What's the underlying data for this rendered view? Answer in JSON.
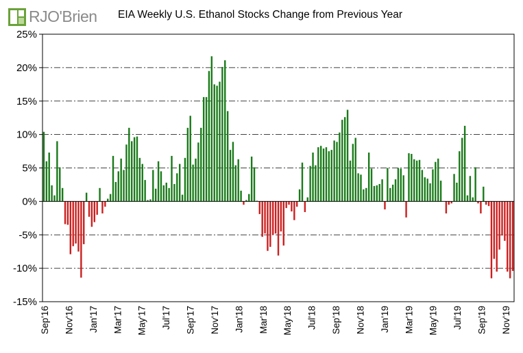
{
  "brand": {
    "logo_text": "RJO'Brien",
    "logo_color": "#6aa23a"
  },
  "chart_data": {
    "type": "bar",
    "title": "EIA Weekly U.S. Ethanol Stocks Change from Previous Year",
    "xlabel": "",
    "ylabel": "",
    "ylim": [
      -15,
      25
    ],
    "yticks": [
      -15,
      -10,
      -5,
      0,
      5,
      10,
      15,
      20,
      25
    ],
    "ytick_labels": [
      "-15%",
      "-10%",
      "-5%",
      "0%",
      "5%",
      "10%",
      "15%",
      "20%",
      "25%"
    ],
    "xtick_labels": [
      "Sep'16",
      "Nov'16",
      "Jan'17",
      "Mar'17",
      "May'17",
      "Jul'17",
      "Sep'17",
      "Nov'17",
      "Jan'18",
      "Mar'18",
      "May'18",
      "Jul'18",
      "Sep'18",
      "Nov'18",
      "Jan'19",
      "Mar'19",
      "May'19",
      "Jul'19",
      "Sep'19",
      "Nov'19"
    ],
    "grid": "horizontal dash-dot",
    "positive_color": "#1a7a1a",
    "negative_color": "#cc1f1f",
    "unit": "percent",
    "values": [
      10.4,
      6.0,
      7.3,
      2.4,
      0.9,
      9.0,
      5.1,
      2.0,
      -3.4,
      -3.5,
      -7.9,
      -6.7,
      -6.3,
      -7.5,
      -11.4,
      -6.4,
      1.3,
      -2.3,
      -3.8,
      -3.1,
      -2.0,
      2.0,
      -1.8,
      -0.8,
      0.4,
      1.1,
      6.8,
      2.9,
      4.5,
      6.4,
      4.7,
      8.5,
      11.0,
      9.0,
      9.6,
      9.7,
      6.5,
      5.6,
      3.2,
      0.2,
      0.3,
      4.7,
      1.9,
      6.0,
      4.5,
      2.4,
      2.8,
      2.0,
      6.8,
      2.6,
      4.2,
      5.6,
      1.0,
      6.5,
      11.0,
      12.8,
      5.5,
      6.4,
      8.8,
      11.0,
      15.6,
      15.6,
      19.5,
      21.7,
      17.5,
      17.3,
      17.9,
      20.1,
      21.1,
      13.5,
      7.7,
      8.9,
      5.4,
      6.3,
      1.6,
      -0.5,
      0.2,
      1.1,
      6.7,
      5.1,
      0.1,
      -1.9,
      -5.3,
      -4.8,
      -7.4,
      -6.8,
      -5.0,
      -4.8,
      -8.1,
      -4.5,
      -6.6,
      -1.0,
      -0.5,
      -1.5,
      -2.8,
      -0.8,
      1.8,
      5.8,
      -1.6,
      0.6,
      5.3,
      7.3,
      5.4,
      8.1,
      8.3,
      7.9,
      8.1,
      7.5,
      7.7,
      9.1,
      8.9,
      10.3,
      12.2,
      12.6,
      13.7,
      6.1,
      8.6,
      9.5,
      4.2,
      4.0,
      1.8,
      2.0,
      7.3,
      4.9,
      2.3,
      2.4,
      2.6,
      3.3,
      -1.2,
      5.0,
      2.0,
      2.5,
      3.3,
      5.0,
      4.9,
      3.9,
      -2.4,
      7.2,
      7.1,
      6.3,
      6.1,
      6.2,
      4.7,
      3.6,
      3.4,
      2.7,
      4.8,
      5.9,
      6.4,
      3.1,
      0.0,
      -1.8,
      -0.5,
      -0.3,
      4.1,
      2.8,
      7.5,
      9.5,
      11.3,
      0.9,
      3.8,
      0.6,
      5.1,
      -0.3,
      -1.8,
      2.2,
      -0.5,
      -0.7,
      -11.5,
      -8.6,
      -10.5,
      -7.2,
      -5.1,
      -5.9,
      -10.5,
      -11.5,
      -10.4
    ]
  }
}
